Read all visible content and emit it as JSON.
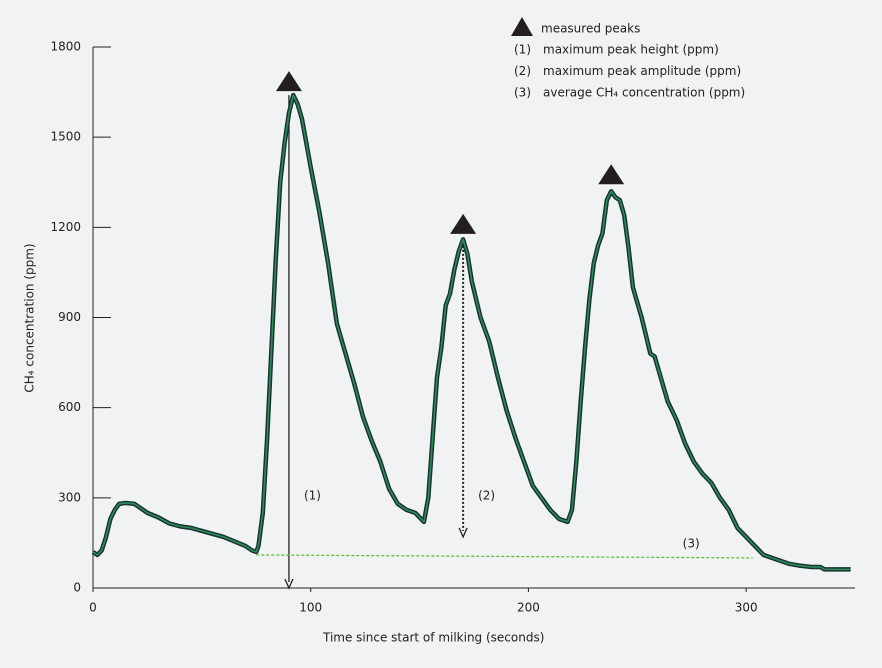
{
  "chart_data": {
    "type": "line",
    "x_label": "Time since start of milking (seconds)",
    "y_label": "CH₄ concentration (ppm)",
    "xlim": [
      0,
      350
    ],
    "xticks": [
      0,
      100,
      200,
      300
    ],
    "ylim": [
      0,
      1800
    ],
    "yticks": [
      0,
      300,
      600,
      900,
      1200,
      1500,
      1800
    ],
    "series": [
      {
        "name": "CH₄ concentration",
        "color": "#2e8b57",
        "outline": "#173232",
        "x": [
          0,
          2,
          4,
          6,
          8,
          10,
          12,
          15,
          19,
          22,
          25,
          30,
          35,
          40,
          45,
          50,
          55,
          60,
          65,
          70,
          73,
          75,
          76,
          78,
          80,
          82,
          84,
          86,
          88,
          90,
          92,
          94,
          96,
          98,
          100,
          104,
          108,
          112,
          116,
          120,
          124,
          128,
          132,
          136,
          140,
          144,
          148,
          152,
          154,
          156,
          158,
          160,
          162,
          164,
          166,
          168,
          170,
          172,
          174,
          178,
          182,
          186,
          190,
          194,
          198,
          202,
          206,
          210,
          214,
          218,
          220,
          222,
          224,
          226,
          228,
          230,
          232,
          234,
          236,
          238,
          240,
          242,
          244,
          246,
          248,
          252,
          256,
          258,
          260,
          264,
          268,
          272,
          276,
          280,
          284,
          288,
          292,
          296,
          300,
          304,
          308,
          312,
          316,
          320,
          324,
          330,
          334,
          336,
          340,
          348
        ],
        "values": [
          120,
          110,
          125,
          170,
          230,
          260,
          280,
          283,
          280,
          265,
          250,
          235,
          215,
          205,
          200,
          190,
          180,
          170,
          155,
          140,
          125,
          120,
          140,
          250,
          500,
          800,
          1100,
          1350,
          1480,
          1580,
          1640,
          1610,
          1560,
          1480,
          1400,
          1250,
          1080,
          880,
          780,
          680,
          570,
          490,
          420,
          330,
          280,
          260,
          250,
          220,
          300,
          500,
          700,
          800,
          940,
          980,
          1060,
          1120,
          1160,
          1110,
          1020,
          900,
          820,
          700,
          590,
          500,
          420,
          340,
          300,
          260,
          230,
          220,
          260,
          420,
          620,
          800,
          960,
          1080,
          1140,
          1180,
          1290,
          1320,
          1300,
          1290,
          1240,
          1130,
          1000,
          900,
          780,
          770,
          720,
          620,
          560,
          480,
          420,
          380,
          350,
          300,
          260,
          200,
          170,
          140,
          110,
          100,
          90,
          80,
          75,
          70,
          70,
          62,
          62,
          62
        ]
      },
      {
        "name": "measured peaks",
        "type": "scatter",
        "color": "#231f20",
        "x": [
          90,
          170,
          238
        ],
        "values": [
          1640,
          1165,
          1330
        ]
      }
    ],
    "annotations": [
      {
        "label": "(1)",
        "text": "maximum peak height (ppm)",
        "x": 90,
        "y_from": 1640,
        "y_to": 0,
        "style": "solid"
      },
      {
        "label": "(2)",
        "text": "maximum peak amplitude (ppm)",
        "x": 170,
        "y_from": 1165,
        "y_to": 170,
        "style": "dotted"
      },
      {
        "label": "(3)",
        "text": "average CH₄ concentration (ppm)",
        "x_from": 75,
        "x_to": 303,
        "y_from": 110,
        "y_to": 100,
        "style": "dashed"
      }
    ]
  }
}
